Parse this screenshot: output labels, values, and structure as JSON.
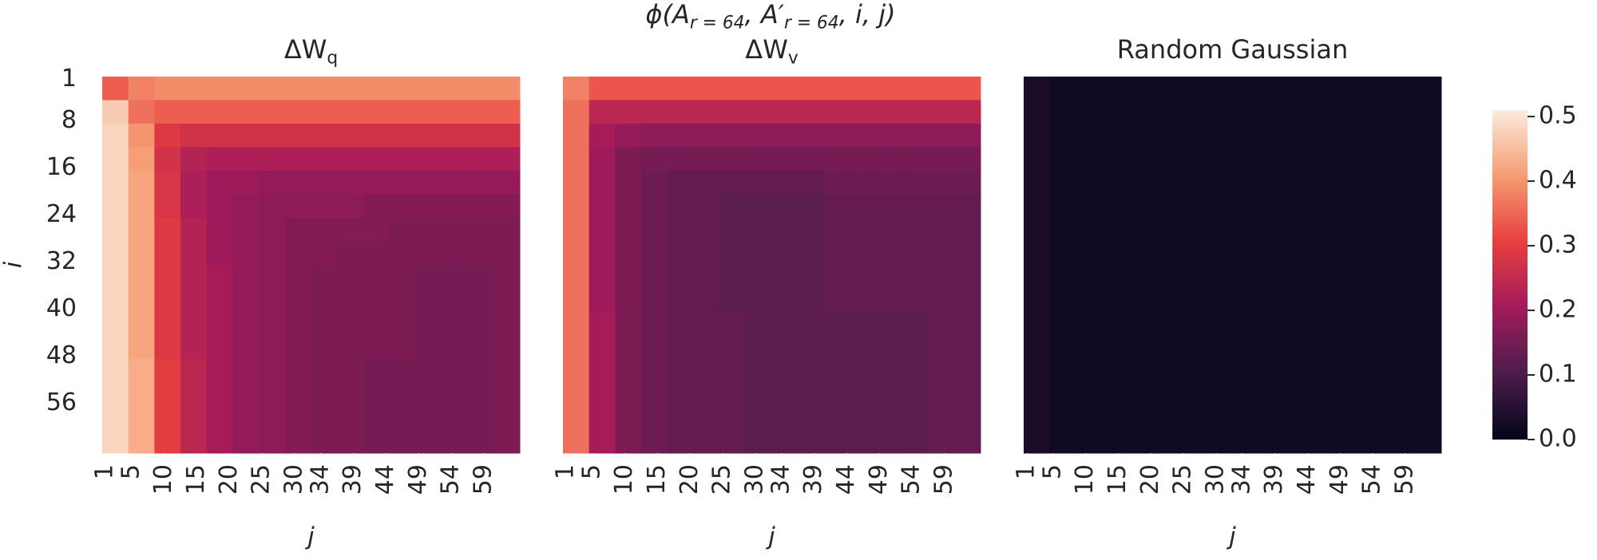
{
  "chart_data": {
    "type": "heatmap",
    "title": [
      "ϕ(A",
      "r = 64",
      ", A′",
      "r = 64",
      ", i, j)"
    ],
    "colors": [
      "#03051a",
      "#4c1d4b",
      "#a11a5b",
      "#e83f3f",
      "#f69c73",
      "#faebdd"
    ],
    "clim": [
      0,
      0.51
    ],
    "cticks": [
      {
        "value": 0,
        "label": "0.0"
      },
      0.1,
      0.2,
      0.3,
      0.4,
      0.5
    ],
    "invert_y": true,
    "panels": [
      {
        "title": [
          "ΔW",
          "q"
        ],
        "xlabel": "j",
        "ylabel": "i",
        "x": [
          2.5,
          6.5,
          10.5,
          14.5,
          18.5,
          22.5,
          26.5,
          30.5,
          34.5,
          38.5,
          42.5,
          46.5,
          50.5,
          54.5,
          58.5,
          62.5
        ],
        "y": [
          2.5,
          6.5,
          10.5,
          14.5,
          18.5,
          22.5,
          26.5,
          30.5,
          34.5,
          38.5,
          42.5,
          46.5,
          50.5,
          54.5,
          58.5,
          62.5
        ],
        "xlim": [
          0.5,
          64.5
        ],
        "ylim": [
          0.5,
          64.5
        ],
        "xticks": [
          1,
          5,
          10,
          15,
          20,
          25,
          30,
          34,
          39,
          44,
          49,
          54,
          59
        ],
        "yticks": [
          1,
          8,
          16,
          24,
          32,
          40,
          48,
          56
        ],
        "z": [
          [
            0.34,
            0.38,
            0.39,
            0.39,
            0.39,
            0.39,
            0.39,
            0.39,
            0.39,
            0.39,
            0.39,
            0.39,
            0.39,
            0.39,
            0.39,
            0.39
          ],
          [
            0.47,
            0.36,
            0.34,
            0.34,
            0.34,
            0.34,
            0.34,
            0.34,
            0.34,
            0.34,
            0.34,
            0.34,
            0.34,
            0.34,
            0.34,
            0.34
          ],
          [
            0.48,
            0.4,
            0.29,
            0.27,
            0.27,
            0.27,
            0.27,
            0.27,
            0.27,
            0.27,
            0.27,
            0.27,
            0.27,
            0.27,
            0.27,
            0.27
          ],
          [
            0.48,
            0.41,
            0.27,
            0.23,
            0.22,
            0.22,
            0.22,
            0.22,
            0.22,
            0.22,
            0.22,
            0.22,
            0.22,
            0.22,
            0.22,
            0.22
          ],
          [
            0.48,
            0.42,
            0.28,
            0.22,
            0.2,
            0.2,
            0.19,
            0.19,
            0.19,
            0.19,
            0.19,
            0.19,
            0.19,
            0.19,
            0.19,
            0.19
          ],
          [
            0.48,
            0.42,
            0.28,
            0.22,
            0.2,
            0.19,
            0.18,
            0.18,
            0.18,
            0.18,
            0.17,
            0.17,
            0.17,
            0.17,
            0.17,
            0.17
          ],
          [
            0.48,
            0.42,
            0.29,
            0.23,
            0.2,
            0.19,
            0.18,
            0.17,
            0.17,
            0.17,
            0.17,
            0.16,
            0.16,
            0.16,
            0.16,
            0.16
          ],
          [
            0.48,
            0.42,
            0.29,
            0.23,
            0.2,
            0.19,
            0.18,
            0.17,
            0.17,
            0.16,
            0.16,
            0.16,
            0.16,
            0.16,
            0.16,
            0.16
          ],
          [
            0.48,
            0.42,
            0.29,
            0.23,
            0.21,
            0.19,
            0.18,
            0.17,
            0.16,
            0.16,
            0.16,
            0.16,
            0.15,
            0.15,
            0.15,
            0.16
          ],
          [
            0.48,
            0.42,
            0.29,
            0.23,
            0.21,
            0.19,
            0.18,
            0.17,
            0.16,
            0.16,
            0.16,
            0.16,
            0.15,
            0.15,
            0.15,
            0.16
          ],
          [
            0.48,
            0.42,
            0.29,
            0.23,
            0.21,
            0.19,
            0.18,
            0.17,
            0.16,
            0.16,
            0.16,
            0.16,
            0.15,
            0.15,
            0.15,
            0.16
          ],
          [
            0.48,
            0.42,
            0.29,
            0.23,
            0.21,
            0.19,
            0.18,
            0.17,
            0.16,
            0.16,
            0.16,
            0.16,
            0.15,
            0.15,
            0.15,
            0.16
          ],
          [
            0.48,
            0.43,
            0.3,
            0.24,
            0.21,
            0.19,
            0.18,
            0.17,
            0.16,
            0.16,
            0.15,
            0.15,
            0.15,
            0.15,
            0.15,
            0.16
          ],
          [
            0.48,
            0.43,
            0.3,
            0.24,
            0.21,
            0.19,
            0.18,
            0.17,
            0.16,
            0.16,
            0.15,
            0.15,
            0.15,
            0.15,
            0.15,
            0.16
          ],
          [
            0.48,
            0.43,
            0.3,
            0.24,
            0.21,
            0.19,
            0.18,
            0.17,
            0.16,
            0.16,
            0.15,
            0.15,
            0.15,
            0.15,
            0.15,
            0.16
          ],
          [
            0.48,
            0.43,
            0.3,
            0.24,
            0.21,
            0.19,
            0.18,
            0.17,
            0.16,
            0.16,
            0.15,
            0.15,
            0.15,
            0.15,
            0.15,
            0.16
          ]
        ]
      },
      {
        "title": [
          "ΔW",
          "v"
        ],
        "xlabel": "j",
        "x": [
          2.5,
          6.5,
          10.5,
          14.5,
          18.5,
          22.5,
          26.5,
          30.5,
          34.5,
          38.5,
          42.5,
          46.5,
          50.5,
          54.5,
          58.5,
          62.5
        ],
        "y": [
          2.5,
          6.5,
          10.5,
          14.5,
          18.5,
          22.5,
          26.5,
          30.5,
          34.5,
          38.5,
          42.5,
          46.5,
          50.5,
          54.5,
          58.5,
          62.5
        ],
        "xlim": [
          0.5,
          64.5
        ],
        "ylim": [
          0.5,
          64.5
        ],
        "xticks": [
          1,
          5,
          10,
          15,
          20,
          25,
          30,
          34,
          39,
          44,
          49,
          54,
          59
        ],
        "z": [
          [
            0.38,
            0.33,
            0.33,
            0.33,
            0.33,
            0.33,
            0.33,
            0.33,
            0.33,
            0.33,
            0.33,
            0.33,
            0.33,
            0.33,
            0.33,
            0.33
          ],
          [
            0.36,
            0.24,
            0.24,
            0.24,
            0.24,
            0.24,
            0.24,
            0.24,
            0.24,
            0.24,
            0.24,
            0.24,
            0.24,
            0.24,
            0.24,
            0.24
          ],
          [
            0.36,
            0.21,
            0.19,
            0.18,
            0.18,
            0.18,
            0.18,
            0.18,
            0.18,
            0.18,
            0.18,
            0.18,
            0.18,
            0.18,
            0.18,
            0.18
          ],
          [
            0.36,
            0.2,
            0.16,
            0.15,
            0.15,
            0.15,
            0.15,
            0.15,
            0.15,
            0.15,
            0.15,
            0.15,
            0.15,
            0.15,
            0.15,
            0.15
          ],
          [
            0.36,
            0.2,
            0.16,
            0.14,
            0.13,
            0.13,
            0.13,
            0.13,
            0.13,
            0.13,
            0.14,
            0.14,
            0.14,
            0.14,
            0.14,
            0.14
          ],
          [
            0.36,
            0.2,
            0.16,
            0.14,
            0.13,
            0.13,
            0.12,
            0.12,
            0.12,
            0.12,
            0.13,
            0.13,
            0.13,
            0.13,
            0.13,
            0.13
          ],
          [
            0.36,
            0.2,
            0.16,
            0.14,
            0.13,
            0.13,
            0.12,
            0.12,
            0.12,
            0.12,
            0.13,
            0.13,
            0.13,
            0.13,
            0.13,
            0.13
          ],
          [
            0.36,
            0.2,
            0.16,
            0.14,
            0.13,
            0.13,
            0.12,
            0.12,
            0.12,
            0.12,
            0.13,
            0.13,
            0.13,
            0.13,
            0.13,
            0.13
          ],
          [
            0.36,
            0.2,
            0.16,
            0.14,
            0.13,
            0.13,
            0.12,
            0.12,
            0.12,
            0.12,
            0.13,
            0.13,
            0.13,
            0.13,
            0.13,
            0.13
          ],
          [
            0.36,
            0.2,
            0.16,
            0.14,
            0.13,
            0.13,
            0.12,
            0.12,
            0.12,
            0.12,
            0.13,
            0.13,
            0.13,
            0.13,
            0.13,
            0.13
          ],
          [
            0.36,
            0.21,
            0.16,
            0.14,
            0.13,
            0.13,
            0.13,
            0.12,
            0.12,
            0.12,
            0.12,
            0.12,
            0.12,
            0.12,
            0.13,
            0.13
          ],
          [
            0.36,
            0.21,
            0.16,
            0.14,
            0.13,
            0.13,
            0.13,
            0.12,
            0.12,
            0.12,
            0.12,
            0.12,
            0.12,
            0.12,
            0.13,
            0.13
          ],
          [
            0.36,
            0.21,
            0.16,
            0.14,
            0.13,
            0.13,
            0.13,
            0.12,
            0.12,
            0.12,
            0.12,
            0.12,
            0.12,
            0.12,
            0.13,
            0.13
          ],
          [
            0.36,
            0.21,
            0.16,
            0.14,
            0.13,
            0.13,
            0.13,
            0.12,
            0.12,
            0.12,
            0.12,
            0.12,
            0.12,
            0.12,
            0.13,
            0.13
          ],
          [
            0.36,
            0.21,
            0.16,
            0.14,
            0.13,
            0.13,
            0.13,
            0.12,
            0.12,
            0.12,
            0.12,
            0.12,
            0.12,
            0.12,
            0.13,
            0.13
          ],
          [
            0.36,
            0.21,
            0.16,
            0.14,
            0.13,
            0.13,
            0.13,
            0.12,
            0.12,
            0.12,
            0.12,
            0.12,
            0.12,
            0.12,
            0.13,
            0.13
          ]
        ]
      },
      {
        "title": [
          "Random Gaussian"
        ],
        "xlabel": "j",
        "x": [
          2.5,
          6.5,
          10.5,
          14.5,
          18.5,
          22.5,
          26.5,
          30.5,
          34.5,
          38.5,
          42.5,
          46.5,
          50.5,
          54.5,
          58.5,
          62.5
        ],
        "y": [
          2.5,
          6.5,
          10.5,
          14.5,
          18.5,
          22.5,
          26.5,
          30.5,
          34.5,
          38.5,
          42.5,
          46.5,
          50.5,
          54.5,
          58.5,
          62.5
        ],
        "xlim": [
          0.5,
          64.5
        ],
        "ylim": [
          0.5,
          64.5
        ],
        "xticks": [
          1,
          5,
          10,
          15,
          20,
          25,
          30,
          34,
          39,
          44,
          49,
          54,
          59
        ],
        "z": [
          [
            0.03,
            0.02,
            0.02,
            0.02,
            0.02,
            0.02,
            0.02,
            0.02,
            0.02,
            0.02,
            0.02,
            0.02,
            0.02,
            0.02,
            0.02,
            0.02
          ],
          [
            0.03,
            0.02,
            0.02,
            0.02,
            0.02,
            0.02,
            0.02,
            0.02,
            0.02,
            0.02,
            0.02,
            0.02,
            0.02,
            0.02,
            0.02,
            0.02
          ],
          [
            0.03,
            0.02,
            0.02,
            0.02,
            0.02,
            0.02,
            0.02,
            0.02,
            0.02,
            0.02,
            0.02,
            0.02,
            0.02,
            0.02,
            0.02,
            0.02
          ],
          [
            0.03,
            0.02,
            0.02,
            0.02,
            0.02,
            0.02,
            0.02,
            0.02,
            0.02,
            0.02,
            0.02,
            0.02,
            0.02,
            0.02,
            0.02,
            0.02
          ],
          [
            0.03,
            0.02,
            0.02,
            0.02,
            0.02,
            0.02,
            0.02,
            0.02,
            0.02,
            0.02,
            0.02,
            0.02,
            0.02,
            0.02,
            0.02,
            0.02
          ],
          [
            0.03,
            0.02,
            0.02,
            0.02,
            0.02,
            0.02,
            0.02,
            0.02,
            0.02,
            0.02,
            0.02,
            0.02,
            0.02,
            0.02,
            0.02,
            0.02
          ],
          [
            0.03,
            0.02,
            0.02,
            0.02,
            0.02,
            0.02,
            0.02,
            0.02,
            0.02,
            0.02,
            0.02,
            0.02,
            0.02,
            0.02,
            0.02,
            0.02
          ],
          [
            0.03,
            0.02,
            0.02,
            0.02,
            0.02,
            0.02,
            0.02,
            0.02,
            0.02,
            0.02,
            0.02,
            0.02,
            0.02,
            0.02,
            0.02,
            0.02
          ],
          [
            0.03,
            0.02,
            0.02,
            0.02,
            0.02,
            0.02,
            0.02,
            0.02,
            0.02,
            0.02,
            0.02,
            0.02,
            0.02,
            0.02,
            0.02,
            0.02
          ],
          [
            0.03,
            0.02,
            0.02,
            0.02,
            0.02,
            0.02,
            0.02,
            0.02,
            0.02,
            0.02,
            0.02,
            0.02,
            0.02,
            0.02,
            0.02,
            0.02
          ],
          [
            0.03,
            0.02,
            0.02,
            0.02,
            0.02,
            0.02,
            0.02,
            0.02,
            0.02,
            0.02,
            0.02,
            0.02,
            0.02,
            0.02,
            0.02,
            0.02
          ],
          [
            0.03,
            0.02,
            0.02,
            0.02,
            0.02,
            0.02,
            0.02,
            0.02,
            0.02,
            0.02,
            0.02,
            0.02,
            0.02,
            0.02,
            0.02,
            0.02
          ],
          [
            0.03,
            0.02,
            0.02,
            0.02,
            0.02,
            0.02,
            0.02,
            0.02,
            0.02,
            0.02,
            0.02,
            0.02,
            0.02,
            0.02,
            0.02,
            0.02
          ],
          [
            0.03,
            0.02,
            0.02,
            0.02,
            0.02,
            0.02,
            0.02,
            0.02,
            0.02,
            0.02,
            0.02,
            0.02,
            0.02,
            0.02,
            0.02,
            0.02
          ],
          [
            0.03,
            0.02,
            0.02,
            0.02,
            0.02,
            0.02,
            0.02,
            0.02,
            0.02,
            0.02,
            0.02,
            0.02,
            0.02,
            0.02,
            0.02,
            0.02
          ],
          [
            0.03,
            0.02,
            0.02,
            0.02,
            0.02,
            0.02,
            0.02,
            0.02,
            0.02,
            0.02,
            0.02,
            0.02,
            0.02,
            0.02,
            0.02,
            0.02
          ]
        ]
      }
    ]
  }
}
